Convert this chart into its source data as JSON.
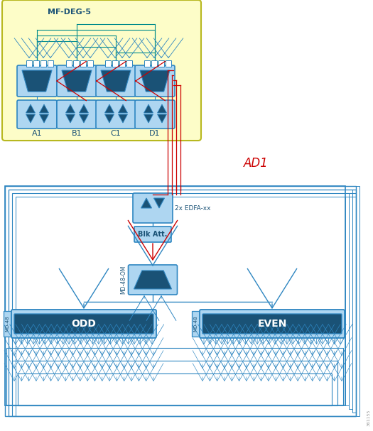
{
  "fig_width": 5.25,
  "fig_height": 6.07,
  "bg_color": "#ffffff",
  "blue_dark": "#1a5276",
  "blue_mid": "#2471a3",
  "blue_light": "#aed6f1",
  "blue_lighter": "#d6eaf8",
  "blue_border": "#2e86c1",
  "yellow_bg": "#fdfdc8",
  "yellow_border": "#b8b820",
  "red_line": "#cc0000",
  "teal_line": "#008b8b",
  "ad1_color": "#cc0000",
  "label_color": "#1a5276",
  "mf_deg_label": "MF-DEG-5",
  "ad1_label": "AD1",
  "edfa_label": "2x EDFA-xx",
  "blk_att_label": "Blk Att.",
  "md48_om_label": "MD-48-OM",
  "odd_label": "ODD",
  "even_label": "EVEN",
  "md48_odd_label": "MD-48",
  "md48_even_label": "MD-48",
  "col_labels": [
    "A1",
    "B1",
    "C1",
    "D1"
  ],
  "watermark": "361155"
}
